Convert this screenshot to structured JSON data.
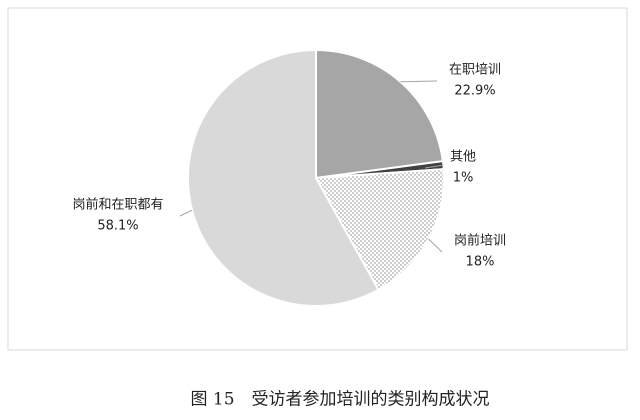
{
  "chart_data": {
    "type": "pie",
    "categories": [
      "在职培训",
      "其他",
      "岗前培训",
      "岗前和在职都有"
    ],
    "values": [
      22.9,
      1,
      18,
      58.1
    ],
    "value_labels": [
      "22.9%",
      "1%",
      "18%",
      "58.1%"
    ],
    "colors": [
      "#a6a6a6",
      "#404040",
      "#7f7f7f",
      "#d9d9d9"
    ],
    "patterns": [
      "solid",
      "solid",
      "dotted",
      "solid"
    ],
    "caption": "图 15　受访者参加培训的类别构成状况"
  }
}
